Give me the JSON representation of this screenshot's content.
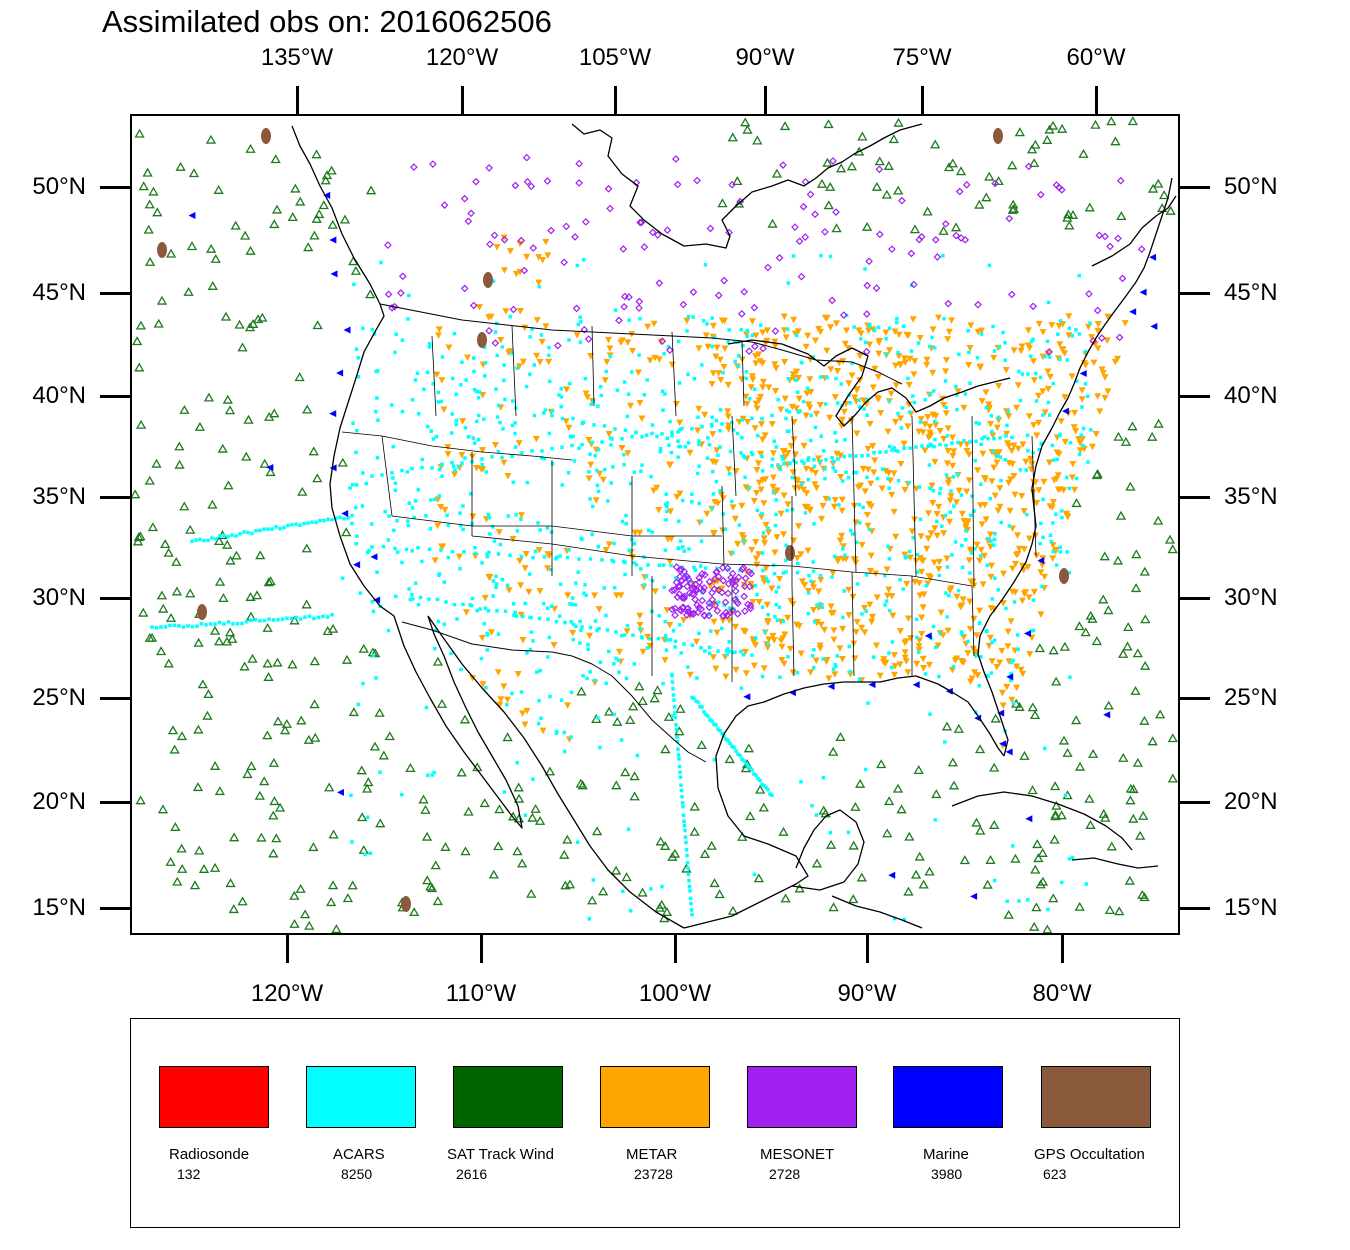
{
  "title": "Assimilated obs on: 2016062506",
  "axes": {
    "top_lon_labels": [
      "135°W",
      "120°W",
      "105°W",
      "90°W",
      "75°W",
      "60°W"
    ],
    "bottom_lon_labels": [
      "120°W",
      "110°W",
      "100°W",
      "90°W",
      "80°W"
    ],
    "lat_labels": [
      "50°N",
      "45°N",
      "40°N",
      "35°N",
      "30°N",
      "25°N",
      "20°N",
      "15°N"
    ]
  },
  "legend": [
    {
      "label": "Radiosonde",
      "count": "132",
      "color": "#ff0000"
    },
    {
      "label": "ACARS",
      "count": "8250",
      "color": "#00ffff"
    },
    {
      "label": "SAT Track Wind",
      "count": "2616",
      "color": "#006400"
    },
    {
      "label": "METAR",
      "count": "23728",
      "color": "#ffa500"
    },
    {
      "label": "MESONET",
      "count": "2728",
      "color": "#a020f0"
    },
    {
      "label": "Marine",
      "count": "3980",
      "color": "#0000ff"
    },
    {
      "label": "GPS Occultation",
      "count": "623",
      "color": "#8b5a3c"
    }
  ],
  "symbols": {
    "coast_color": "#000000",
    "sat_color": "#1e7a1e",
    "acars_color": "#00ffff",
    "metar_color": "#ffa500",
    "mesonet_color": "#a020f0",
    "marine_color": "#0000ff",
    "gps_color": "#8b5a3c"
  }
}
